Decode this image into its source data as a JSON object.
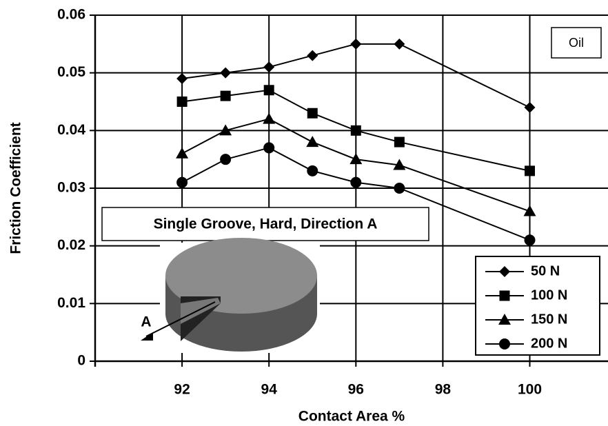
{
  "chart_data": {
    "type": "line",
    "x_label": "Contact Area %",
    "y_label": "Friction Coefficient",
    "x": [
      92,
      93,
      94,
      95,
      96,
      97,
      100
    ],
    "series": [
      {
        "name": "50 N",
        "color": "#000000",
        "marker": "diamond",
        "values": [
          0.049,
          0.05,
          0.051,
          0.053,
          0.055,
          0.055,
          0.044
        ]
      },
      {
        "name": "100 N",
        "color": "#000000",
        "marker": "square",
        "values": [
          0.045,
          0.046,
          0.047,
          0.043,
          0.04,
          0.038,
          0.033
        ]
      },
      {
        "name": "150 N",
        "color": "#000000",
        "marker": "triangle",
        "values": [
          0.036,
          0.04,
          0.042,
          0.038,
          0.035,
          0.034,
          0.026
        ]
      },
      {
        "name": "200 N",
        "color": "#000000",
        "marker": "circle",
        "values": [
          0.031,
          0.035,
          0.037,
          0.033,
          0.031,
          0.03,
          0.021
        ]
      }
    ],
    "xlim": [
      90,
      101.8
    ],
    "xticks": [
      92,
      94,
      96,
      98,
      100
    ],
    "ylim": [
      0,
      0.06
    ],
    "yticks": [
      0,
      0.01,
      0.02,
      0.03,
      0.04,
      0.05,
      0.06
    ],
    "grid": true,
    "legend_position": "lower right",
    "annotations": [
      "Oil",
      "Single Groove, Hard, Direction A",
      "A"
    ]
  }
}
